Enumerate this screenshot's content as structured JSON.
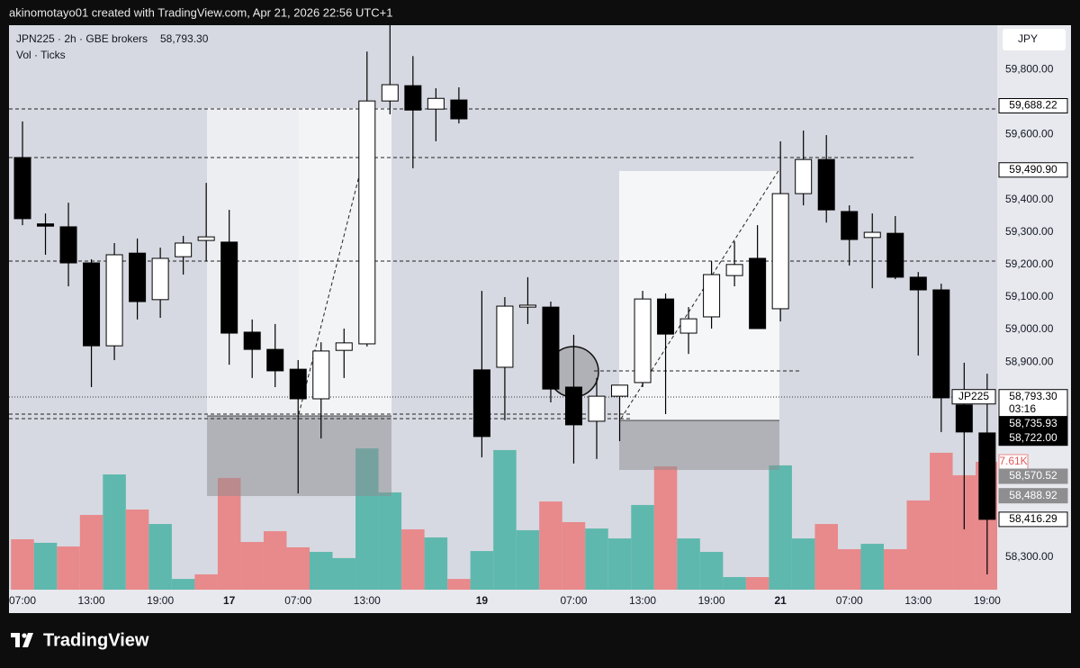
{
  "header": {
    "credit": "akinomotayo01 created with TradingView.com, Apr 21, 2026 22:56 UTC+1",
    "symbol": "JPN225 · 2h · GBE brokers",
    "price": "58,793.30",
    "indicator": "Vol · Ticks",
    "currency": "JPY"
  },
  "footer": {
    "brand": "TradingView"
  },
  "chart_data": {
    "type": "candlestick",
    "categories": [
      "07:00",
      null,
      null,
      "13:00",
      null,
      null,
      "19:00",
      null,
      null,
      "17",
      null,
      null,
      "07:00",
      null,
      null,
      "13:00",
      null,
      null,
      null,
      null,
      "19",
      null,
      null,
      null,
      "07:00",
      null,
      null,
      "13:00",
      null,
      null,
      "19:00",
      null,
      null,
      "21",
      null,
      null,
      "07:00",
      null,
      null,
      "13:00",
      null,
      null,
      "19:00"
    ],
    "open": [
      59529,
      59325,
      59316,
      59205,
      58950,
      59235,
      59092,
      59224,
      59274,
      59269,
      58992,
      58939,
      58878,
      58787,
      58936,
      58956,
      59703,
      59750,
      59678,
      59706,
      58876,
      58884,
      59069,
      59069,
      58823,
      58718,
      58795,
      58837,
      59094,
      58989,
      59039,
      59166,
      59219,
      59064,
      59418,
      59523,
      59363,
      59283,
      59296,
      59161,
      59122,
      58768,
      58682
    ],
    "high": [
      59640,
      59357,
      59390,
      59216,
      59266,
      59280,
      59252,
      59288,
      59451,
      59368,
      59031,
      59017,
      58906,
      58961,
      59003,
      59855,
      59936,
      59841,
      59742,
      59745,
      59119,
      59100,
      59161,
      59086,
      58984,
      58851,
      58829,
      59119,
      59111,
      59069,
      59210,
      59271,
      59321,
      59579,
      59612,
      59598,
      59382,
      59357,
      59349,
      59177,
      59141,
      58898,
      58864
    ],
    "low": [
      59321,
      59230,
      59133,
      58823,
      58906,
      59031,
      59036,
      59169,
      59210,
      58892,
      58851,
      58823,
      58496,
      58665,
      58851,
      58948,
      59662,
      59496,
      59579,
      59634,
      58607,
      58721,
      59017,
      58776,
      58588,
      58602,
      58657,
      58823,
      58740,
      58925,
      59003,
      59133,
      59003,
      59025,
      59382,
      59329,
      59197,
      59127,
      59155,
      58920,
      58685,
      58386,
      58247
    ],
    "close": [
      59341,
      59318,
      59205,
      58950,
      59230,
      59086,
      59219,
      59266,
      59285,
      58989,
      58939,
      58873,
      58787,
      58934,
      58959,
      59703,
      59753,
      59675,
      59711,
      59648,
      58671,
      59072,
      59075,
      58817,
      58707,
      58795,
      58829,
      59094,
      58986,
      59033,
      59169,
      59200,
      59003,
      59418,
      59523,
      59368,
      59277,
      59299,
      59161,
      59122,
      58790,
      58685,
      58416.29
    ],
    "up_color": "#ffffff",
    "down_color": "#000000",
    "volume": [
      3.0,
      2.79,
      2.57,
      4.45,
      6.86,
      4.77,
      3.91,
      0.64,
      0.91,
      6.65,
      2.84,
      3.48,
      2.52,
      2.25,
      1.88,
      8.41,
      5.79,
      3.59,
      3.11,
      0.64,
      2.3,
      8.31,
      3.54,
      5.25,
      4.02,
      3.64,
      3.05,
      5.04,
      7.34,
      3.05,
      2.25,
      0.75,
      0.75,
      7.4,
      3.05,
      3.91,
      2.41,
      2.73,
      2.41,
      5.31,
      8.15,
      6.81,
      7.61
    ],
    "volume_colors": [
      "#e8898b",
      "#5fb8ae",
      "#e8898b",
      "#e8898b",
      "#5fb8ae",
      "#e8898b",
      "#5fb8ae",
      "#5fb8ae",
      "#e8898b",
      "#e8898b",
      "#e8898b",
      "#e8898b",
      "#e8898b",
      "#5fb8ae",
      "#5fb8ae",
      "#5fb8ae",
      "#5fb8ae",
      "#e8898b",
      "#5fb8ae",
      "#e8898b",
      "#5fb8ae",
      "#5fb8ae",
      "#5fb8ae",
      "#e8898b",
      "#e8898b",
      "#5fb8ae",
      "#5fb8ae",
      "#5fb8ae",
      "#e8898b",
      "#5fb8ae",
      "#5fb8ae",
      "#5fb8ae",
      "#e8898b",
      "#5fb8ae",
      "#5fb8ae",
      "#e8898b",
      "#e8898b",
      "#5fb8ae",
      "#e8898b",
      "#e8898b",
      "#e8898b",
      "#e8898b",
      "#e8898b"
    ],
    "volume_lim": [
      0,
      10
    ],
    "volume_last_label": "7.61K",
    "ylim": [
      58200,
      59936
    ],
    "yticks": [
      {
        "value": 59800,
        "label": "59,800.00"
      },
      {
        "value": 59600,
        "label": "59,600.00"
      },
      {
        "value": 59400,
        "label": "59,400.00"
      },
      {
        "value": 59300,
        "label": "59,300.00"
      },
      {
        "value": 59200,
        "label": "59,200.00"
      },
      {
        "value": 59100,
        "label": "59,100.00"
      },
      {
        "value": 59000,
        "label": "59,000.00"
      },
      {
        "value": 58900,
        "label": "58,900.00"
      },
      {
        "value": 58300,
        "label": "58,300.00"
      }
    ],
    "price_labels": [
      {
        "value": 59688.22,
        "label": "59,688.22",
        "style": "outline"
      },
      {
        "value": 59490.9,
        "label": "59,490.90",
        "style": "outline"
      },
      {
        "value": 58793.3,
        "label": "58,793.30",
        "style": "outline",
        "name": "JP225",
        "countdown": "03:16"
      },
      {
        "value": 58735.93,
        "label": "58,735.93",
        "style": "dark"
      },
      {
        "value": 58722.0,
        "label": "58,722.00",
        "style": "dark"
      },
      {
        "value": 58570.52,
        "label": "58,570.52",
        "style": "gray"
      },
      {
        "value": 58488.92,
        "label": "58,488.92",
        "style": "gray"
      },
      {
        "value": 58416.29,
        "label": "58,416.29",
        "style": "outline"
      }
    ],
    "grid": false
  }
}
